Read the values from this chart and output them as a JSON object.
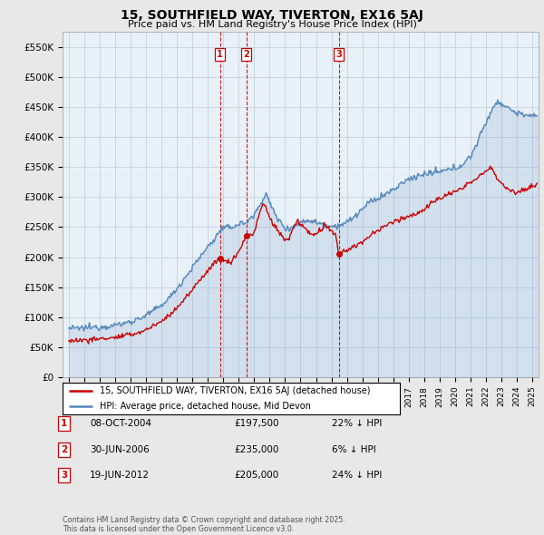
{
  "title": "15, SOUTHFIELD WAY, TIVERTON, EX16 5AJ",
  "subtitle": "Price paid vs. HM Land Registry's House Price Index (HPI)",
  "ylabel_ticks": [
    "£0",
    "£50K",
    "£100K",
    "£150K",
    "£200K",
    "£250K",
    "£300K",
    "£350K",
    "£400K",
    "£450K",
    "£500K",
    "£550K"
  ],
  "ytick_values": [
    0,
    50000,
    100000,
    150000,
    200000,
    250000,
    300000,
    350000,
    400000,
    450000,
    500000,
    550000
  ],
  "ylim": [
    0,
    575000
  ],
  "xlim_start": 1994.6,
  "xlim_end": 2025.4,
  "transactions": [
    {
      "label": "1",
      "date": 2004.78,
      "price": 197500
    },
    {
      "label": "2",
      "date": 2006.5,
      "price": 235000
    },
    {
      "label": "3",
      "date": 2012.47,
      "price": 205000
    }
  ],
  "legend_line1": "15, SOUTHFIELD WAY, TIVERTON, EX16 5AJ (detached house)",
  "legend_line2": "HPI: Average price, detached house, Mid Devon",
  "table_rows": [
    {
      "num": "1",
      "date": "08-OCT-2004",
      "price": "£197,500",
      "hpi": "22% ↓ HPI"
    },
    {
      "num": "2",
      "date": "30-JUN-2006",
      "price": "£235,000",
      "hpi": "6% ↓ HPI"
    },
    {
      "num": "3",
      "date": "19-JUN-2012",
      "price": "£205,000",
      "hpi": "24% ↓ HPI"
    }
  ],
  "footer": "Contains HM Land Registry data © Crown copyright and database right 2025.\nThis data is licensed under the Open Government Licence v3.0.",
  "line_color_red": "#cc0000",
  "line_color_blue": "#5588bb",
  "plot_bg": "#e8f0f8",
  "bg_color": "#e8e8e8",
  "grid_color": "#c0ccd8"
}
